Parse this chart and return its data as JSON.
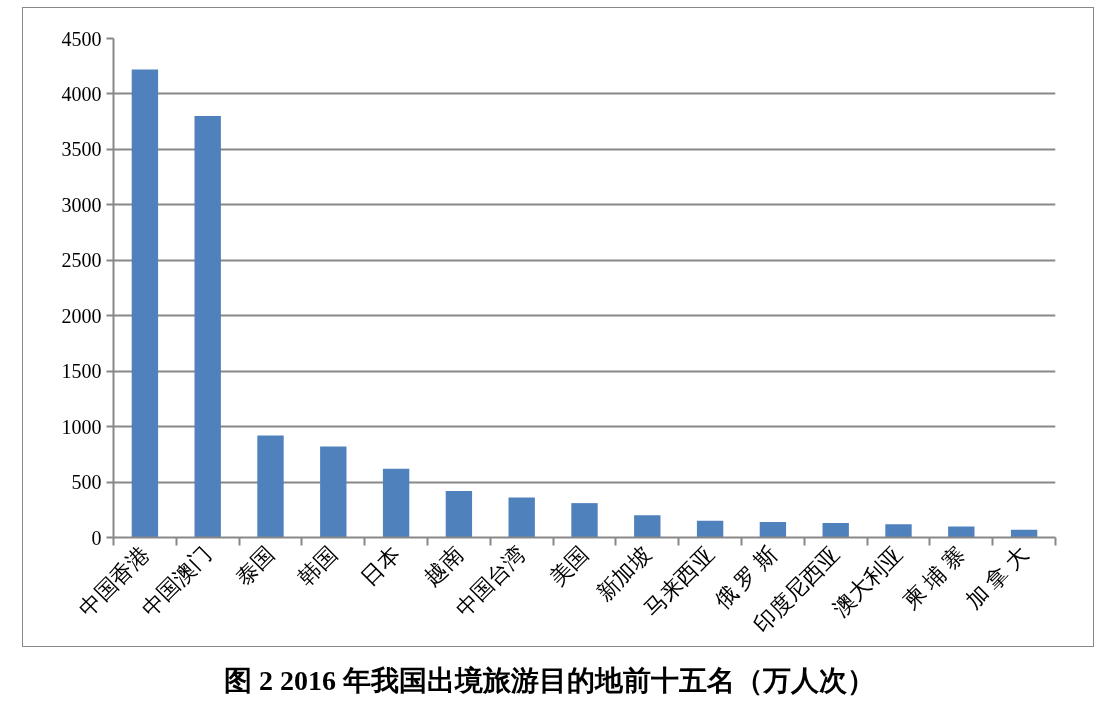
{
  "chart_data": {
    "type": "bar",
    "title": "图 2 2016 年我国出境旅游目的地前十五名（万人次）",
    "categories": [
      "中国香港",
      "中国澳门",
      "泰国",
      "韩国",
      "日本",
      "越南",
      "中国台湾",
      "美国",
      "新加坡",
      "马来西亚",
      "俄 罗 斯",
      "印度尼西亚",
      "澳大利亚",
      "柬 埔 寨",
      "加 拿 大"
    ],
    "values": [
      4220,
      3800,
      920,
      820,
      620,
      420,
      360,
      310,
      200,
      150,
      140,
      130,
      120,
      100,
      70
    ],
    "color": "#4f81bd",
    "ylim": [
      0,
      4500
    ],
    "yticks": [
      0,
      500,
      1000,
      1500,
      2000,
      2500,
      3000,
      3500,
      4000,
      4500
    ],
    "grid": "y"
  }
}
